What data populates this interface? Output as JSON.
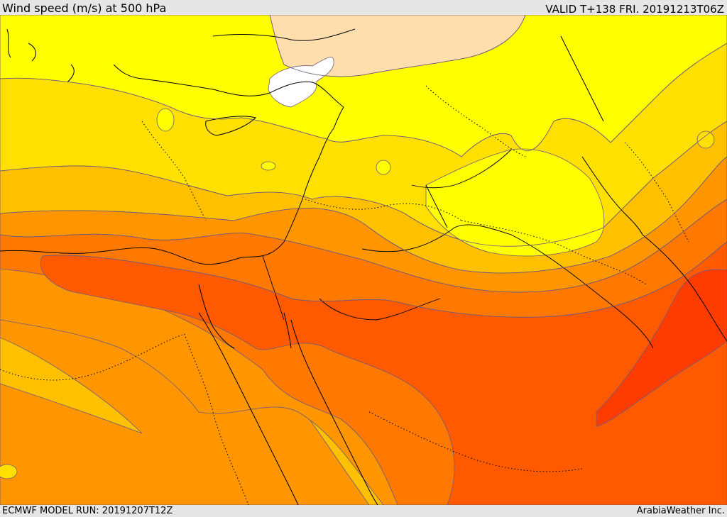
{
  "header": {
    "title": "Wind speed (m/s) at 500 hPa",
    "valid": "VALID T+138 FRI. 20191213T06Z"
  },
  "footer": {
    "model_run": "ECMWF MODEL RUN: 20191207T12Z",
    "credit": "ArabiaWeather Inc."
  },
  "map": {
    "field": "wind speed",
    "level": "500 hPa",
    "colors": {
      "calm": "#ffffff",
      "very_light": "#ffdead",
      "light": "#ffff00",
      "moderate": "#ffe000",
      "medium": "#ffc000",
      "strong": "#ff9600",
      "very_strong": "#ff7800",
      "jet": "#ff5a00",
      "jet_core": "#ff3c00",
      "contour_line": "#6f5a7a",
      "coastline": "#000000"
    }
  }
}
